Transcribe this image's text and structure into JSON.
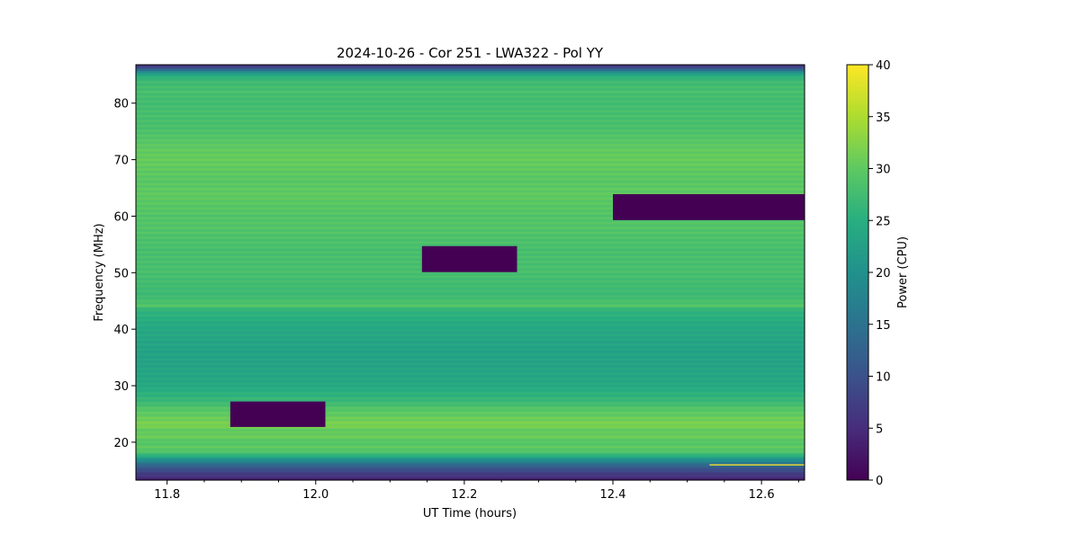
{
  "chart_data": {
    "type": "heatmap",
    "title": "2024-10-26 - Cor 251 - LWA322 - Pol YY",
    "xlabel": "UT Time (hours)",
    "ylabel": "Frequency (MHz)",
    "colorbar_label": "Power (CPU)",
    "xlim": [
      11.758,
      12.658
    ],
    "ylim": [
      13.3,
      86.8
    ],
    "clim": [
      0,
      40
    ],
    "colormap": "viridis",
    "xticks": [
      11.8,
      12.0,
      12.2,
      12.4,
      12.6
    ],
    "xtick_labels": [
      "11.8",
      "12.0",
      "12.2",
      "12.4",
      "12.6"
    ],
    "yticks": [
      20,
      30,
      40,
      50,
      60,
      70,
      80
    ],
    "ytick_labels": [
      "20",
      "30",
      "40",
      "50",
      "60",
      "70",
      "80"
    ],
    "cticks": [
      0,
      5,
      10,
      15,
      20,
      25,
      30,
      35,
      40
    ],
    "ctick_labels": [
      "0",
      "5",
      "10",
      "15",
      "20",
      "25",
      "30",
      "35",
      "40"
    ],
    "frequency_profile": {
      "freq_mhz": [
        13.3,
        14,
        15,
        16,
        17,
        18,
        19,
        20,
        21,
        22,
        23,
        24,
        25,
        26,
        27,
        28,
        29,
        30,
        32,
        34,
        36,
        38,
        40,
        42,
        43.5,
        44,
        46,
        48,
        50,
        52,
        54,
        56,
        58,
        60,
        62,
        64,
        66,
        68,
        70,
        72,
        74,
        76,
        78,
        80,
        82,
        84,
        85,
        85.8,
        86.3,
        86.8
      ],
      "power": [
        4,
        6,
        9,
        14,
        21,
        28,
        30,
        29,
        31,
        30,
        32,
        31,
        30,
        29,
        27,
        26,
        25,
        24,
        23.5,
        23,
        23,
        23.5,
        24,
        25,
        26,
        29,
        27,
        27.5,
        28,
        28,
        28,
        28.5,
        29,
        29,
        29.5,
        30,
        29.5,
        30,
        30.5,
        30,
        29,
        28,
        28,
        27.5,
        28,
        27,
        24,
        15,
        8,
        5
      ]
    },
    "masked_regions": [
      {
        "t_start": 11.885,
        "t_end": 12.013,
        "f_low": 22.7,
        "f_high": 27.2,
        "power": 0
      },
      {
        "t_start": 12.143,
        "t_end": 12.271,
        "f_low": 50.1,
        "f_high": 54.7,
        "power": 0
      },
      {
        "t_start": 12.4,
        "t_end": 12.658,
        "f_low": 59.3,
        "f_high": 63.9,
        "power": 0
      }
    ],
    "line_features": [
      {
        "t_start": 12.53,
        "t_end": 12.658,
        "freq": 16.0,
        "power": 30
      }
    ]
  }
}
